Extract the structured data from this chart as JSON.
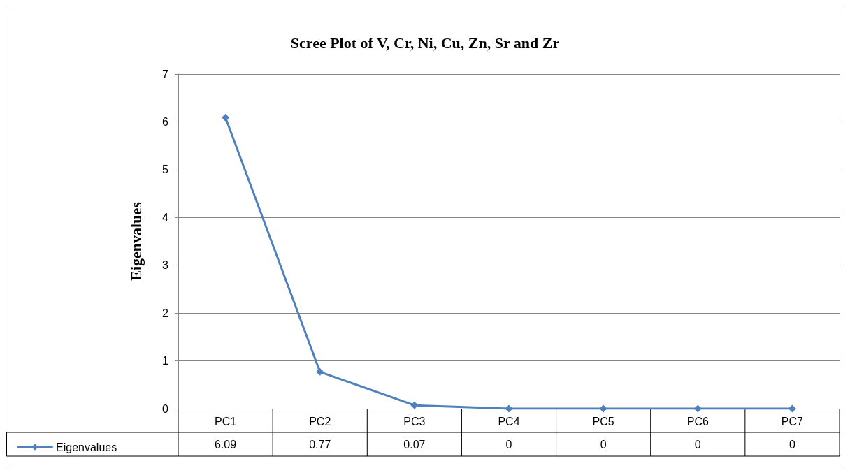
{
  "chart_data": {
    "type": "line",
    "title": "Scree Plot of V, Cr, Ni, Cu, Zn, Sr and Zr",
    "ylabel": "Eigenvalues",
    "categories": [
      "PC1",
      "PC2",
      "PC3",
      "PC4",
      "PC5",
      "PC6",
      "PC7"
    ],
    "series": [
      {
        "name": "Eigenvalues",
        "color": "#4f81bd",
        "values": [
          6.09,
          0.77,
          0.07,
          0,
          0,
          0,
          0
        ]
      }
    ],
    "ylim": [
      0,
      7
    ],
    "yticks": [
      0,
      1,
      2,
      3,
      4,
      5,
      6,
      7
    ],
    "grid": "y",
    "legend": "bottom left",
    "marker": "diamond",
    "line_style": "solid",
    "data_labels": true
  }
}
